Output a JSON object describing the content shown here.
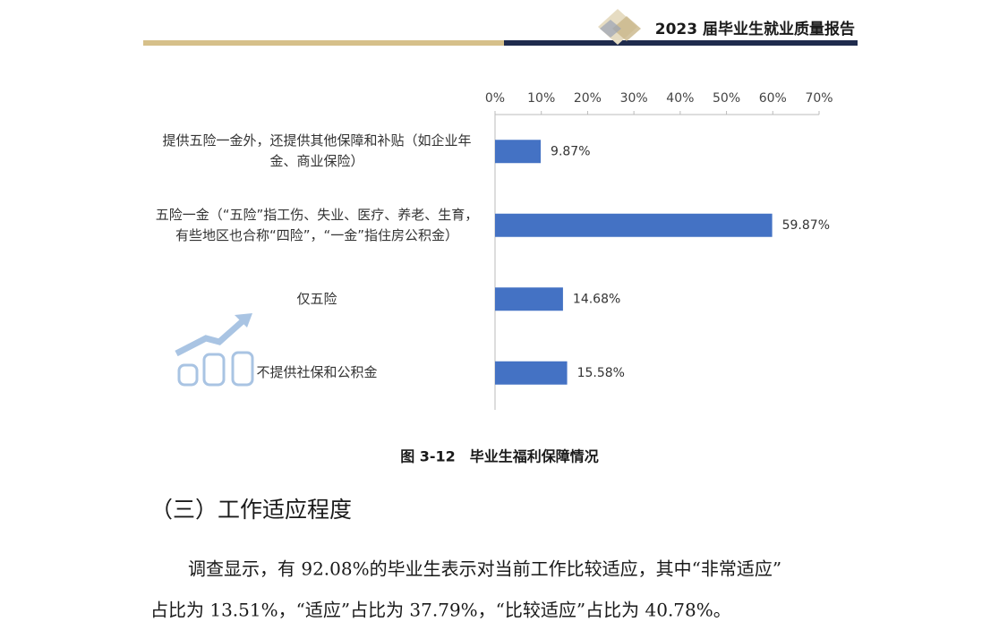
{
  "header": {
    "title": "2023 届毕业生就业质量报告"
  },
  "chart_data": {
    "type": "bar",
    "orientation": "horizontal",
    "categories": [
      "提供五险一金外，还提供其他保障和补贴（如企业年金、商业保险）",
      "五险一金（“五险”指工伤、失业、医疗、养老、生育，有些地区也合称“四险”，“一金”指住房公积金）",
      "仅五险",
      "不提供社保和公积金"
    ],
    "values": [
      9.87,
      59.87,
      14.68,
      15.58
    ],
    "value_labels": [
      "9.87%",
      "59.87%",
      "14.68%",
      "15.58%"
    ],
    "color": "#4472c4",
    "xlim": [
      0,
      70
    ],
    "xticks": [
      {
        "value": 0,
        "label": "0%"
      },
      {
        "value": 10,
        "label": "10%"
      },
      {
        "value": 20,
        "label": "20%"
      },
      {
        "value": 30,
        "label": "30%"
      },
      {
        "value": 40,
        "label": "40%"
      },
      {
        "value": 50,
        "label": "50%"
      },
      {
        "value": 60,
        "label": "60%"
      },
      {
        "value": 70,
        "label": "70%"
      }
    ],
    "grid": false
  },
  "caption": "图 3-12　毕业生福利保障情况",
  "section": {
    "heading": "（三）工作适应程度",
    "paragraph": [
      "调查显示，有 92.08%的毕业生表示对当前工作比较适应，其中“非常适应”",
      "占比为 13.51%，“适应”占比为 37.79%，“比较适应”占比为 40.78%。"
    ]
  }
}
